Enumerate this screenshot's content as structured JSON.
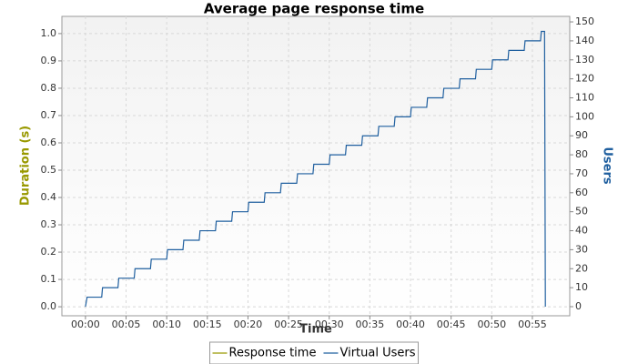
{
  "chart_data": {
    "type": "line",
    "title": "Average page response time",
    "x_label": "Time",
    "y_label": "Duration (s)",
    "y2_label": "Users",
    "y_label_color": "#999900",
    "y2_label_color": "#1f5f9f",
    "xlim": [
      -2.9,
      59.6
    ],
    "xticks": [
      {
        "value": 0,
        "label": "00:00"
      },
      {
        "value": 5,
        "label": "00:05"
      },
      {
        "value": 10,
        "label": "00:10"
      },
      {
        "value": 15,
        "label": "00:15"
      },
      {
        "value": 20,
        "label": "00:20"
      },
      {
        "value": 25,
        "label": "00:25"
      },
      {
        "value": 30,
        "label": "00:30"
      },
      {
        "value": 35,
        "label": "00:35"
      },
      {
        "value": 40,
        "label": "00:40"
      },
      {
        "value": 45,
        "label": "00:45"
      },
      {
        "value": 50,
        "label": "00:50"
      },
      {
        "value": 55,
        "label": "00:55"
      }
    ],
    "ylim": [
      -0.033,
      1.063
    ],
    "yticks": [
      {
        "value": 0,
        "label": "0.0"
      },
      0.1,
      0.2,
      0.3,
      0.4,
      0.5,
      0.6,
      0.7,
      0.8,
      0.9,
      {
        "value": 1,
        "label": "1.0"
      }
    ],
    "y2lim": [
      -4.8,
      152.9
    ],
    "y2ticks": [
      0,
      10,
      20,
      30,
      40,
      50,
      60,
      70,
      80,
      90,
      100,
      110,
      120,
      130,
      140,
      150
    ],
    "grid": true,
    "legend": "bottom",
    "series": [
      {
        "name": "Response time",
        "color": "#999900",
        "axis": "y",
        "x": [],
        "values": []
      },
      {
        "name": "Virtual Users",
        "color": "#1f5f9f",
        "axis": "y2",
        "x": [
          0,
          0.2,
          2,
          2.1,
          4,
          4.1,
          6,
          6.1,
          8,
          8.1,
          10,
          10.1,
          12,
          12.1,
          14,
          14.1,
          16,
          16.1,
          18,
          18.1,
          20,
          20.1,
          22,
          22.1,
          24,
          24.1,
          26,
          26.1,
          28,
          28.1,
          30,
          30.1,
          32,
          32.1,
          34,
          34.1,
          36,
          36.1,
          38,
          38.1,
          40,
          40.1,
          42,
          42.1,
          44,
          44.1,
          46,
          46.1,
          48,
          48.1,
          50,
          50.1,
          52,
          52.1,
          54,
          54.1,
          56,
          56.1,
          56.5,
          56.6
        ],
        "values": [
          0,
          5,
          5,
          10,
          10,
          15,
          15,
          20,
          20,
          25,
          25,
          30,
          30,
          35,
          35,
          40,
          40,
          45,
          45,
          50,
          50,
          55,
          55,
          60,
          60,
          65,
          65,
          70,
          70,
          75,
          75,
          80,
          80,
          85,
          85,
          90,
          90,
          95,
          95,
          100,
          100,
          105,
          105,
          110,
          110,
          115,
          115,
          120,
          120,
          125,
          125,
          130,
          130,
          135,
          135,
          140,
          140,
          145,
          145,
          0
        ]
      }
    ]
  }
}
